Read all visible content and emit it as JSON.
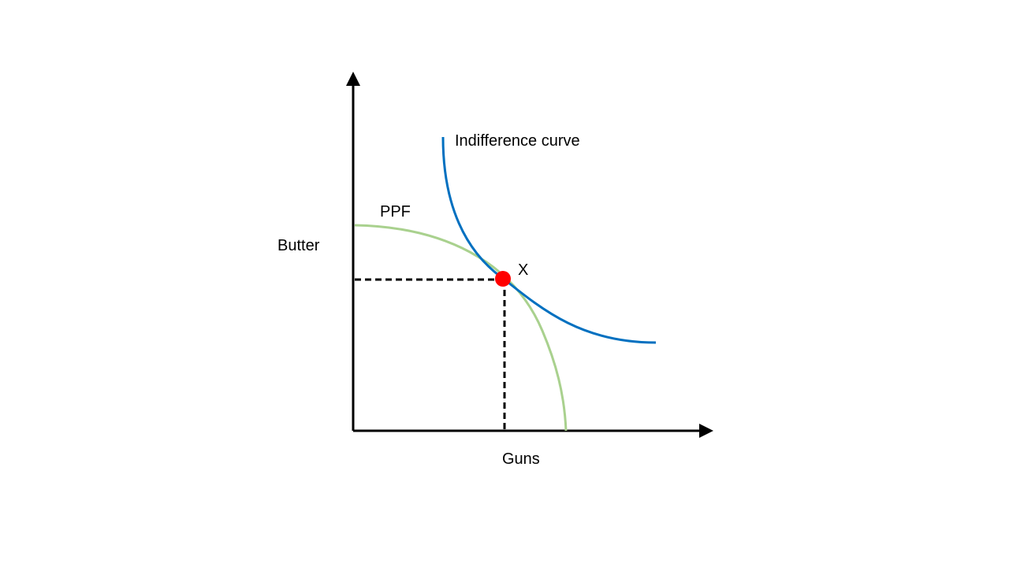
{
  "labels": {
    "y_axis": "Butter",
    "x_axis": "Guns",
    "ppf": "PPF",
    "indifference": "Indifference curve",
    "point": "X"
  },
  "colors": {
    "axis": "#000000",
    "ppf": "#a9d18e",
    "indifference": "#0070c0",
    "point": "#ff0000",
    "guide": "#000000"
  }
}
